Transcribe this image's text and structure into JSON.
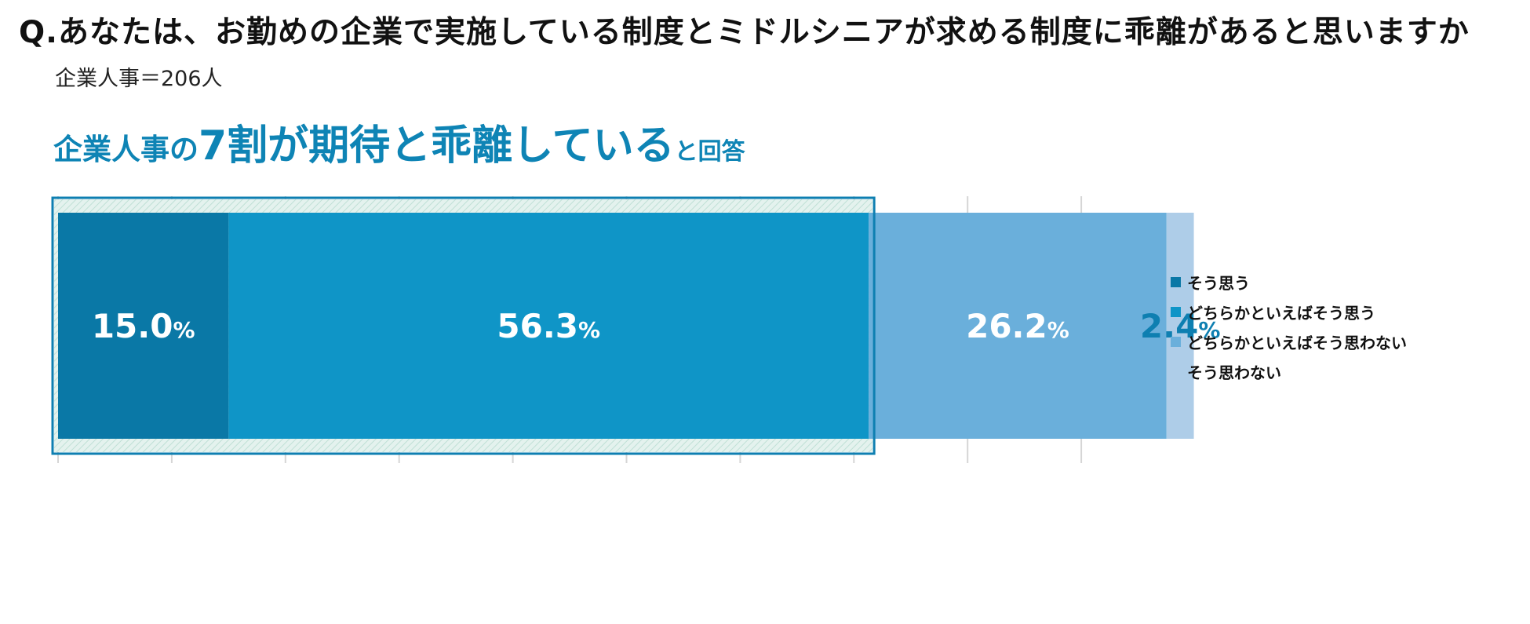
{
  "question": "Q.あなたは、お勤めの企業で実施している制度とミドルシニアが求める制度に乖離があると思いますか",
  "sample": "企業人事＝206人",
  "headline": {
    "part1": "企業人事の",
    "part2": "7割が期待と乖離している",
    "part3": "と回答"
  },
  "chart_data": {
    "type": "bar",
    "orientation": "horizontal-stacked-100",
    "categories": [
      "企業人事"
    ],
    "series": [
      {
        "name": "そう思う",
        "values": [
          15.0
        ],
        "label": "15.0",
        "color": "#0a78a6",
        "label_color": "#ffffff"
      },
      {
        "name": "どちらかといえばそう思う",
        "values": [
          56.3
        ],
        "label": "56.3",
        "color": "#0f95c7",
        "label_color": "#ffffff"
      },
      {
        "name": "どちらかといえばそう思わない",
        "values": [
          26.2
        ],
        "label": "26.2",
        "color": "#6aafdb",
        "label_color": "#ffffff"
      },
      {
        "name": "そう思わない",
        "values": [
          2.4
        ],
        "label": "2.4",
        "color": "#aecde8",
        "label_color": "#0e7fb1"
      }
    ],
    "unit": "%",
    "xlim": [
      0,
      100
    ],
    "grid": true,
    "highlight_series": [
      "そう思う",
      "どちらかといえばそう思う"
    ],
    "legend_position": "right"
  }
}
